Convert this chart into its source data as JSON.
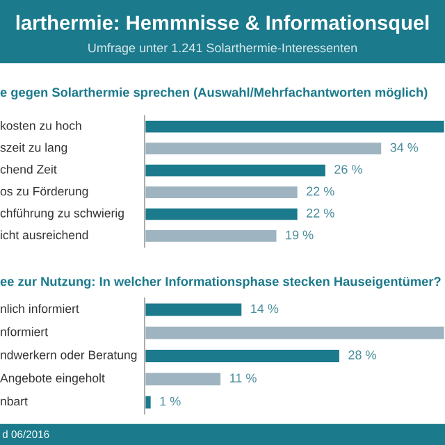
{
  "chart_data": [
    {
      "type": "other",
      "title": "larthermie: Hemmnisse & Informationsquel",
      "subtitle": "Umfrage unter 1.241 Solarthermie-Interessenten",
      "color": "#1b7a8c"
    },
    {
      "type": "bar",
      "orientation": "horizontal",
      "title": "e gegen Solarthermie sprechen (Auswahl/Mehrfachantworten möglich)",
      "categories": [
        "kosten zu hoch",
        "szeit zu lang",
        "chend Zeit",
        "os zu Förderung",
        "chführung zu schwierig",
        "icht ausreichend"
      ],
      "values": [
        43,
        34,
        26,
        22,
        22,
        19
      ],
      "colors": [
        "#1b7a8c",
        "#9fb4c1",
        "#1b7a8c",
        "#9fb4c1",
        "#1b7a8c",
        "#9fb4c1"
      ],
      "value_labels": [
        null,
        "34 %",
        "26 %",
        "22 %",
        "22 %",
        "19 %"
      ],
      "xlim": [
        0,
        43
      ],
      "tick_labels": false
    },
    {
      "type": "bar",
      "orientation": "horizontal",
      "title": "ee zur Nutzung: In welcher Informationsphase stecken Hauseigentümer?",
      "categories": [
        "nlich informiert",
        "nformiert",
        "ndwerkern oder Beratung",
        "Angebote eingeholt",
        "nbart"
      ],
      "values": [
        14,
        43,
        28,
        11,
        1
      ],
      "colors": [
        "#1b7a8c",
        "#9fb4c1",
        "#1b7a8c",
        "#9fb4c1",
        "#1b7a8c"
      ],
      "value_labels": [
        "14 %",
        null,
        "28 %",
        "11 %",
        "1 %"
      ],
      "xlim": [
        0,
        43
      ],
      "tick_labels": false,
      "annotations": [
        "d 06/2016"
      ]
    }
  ]
}
